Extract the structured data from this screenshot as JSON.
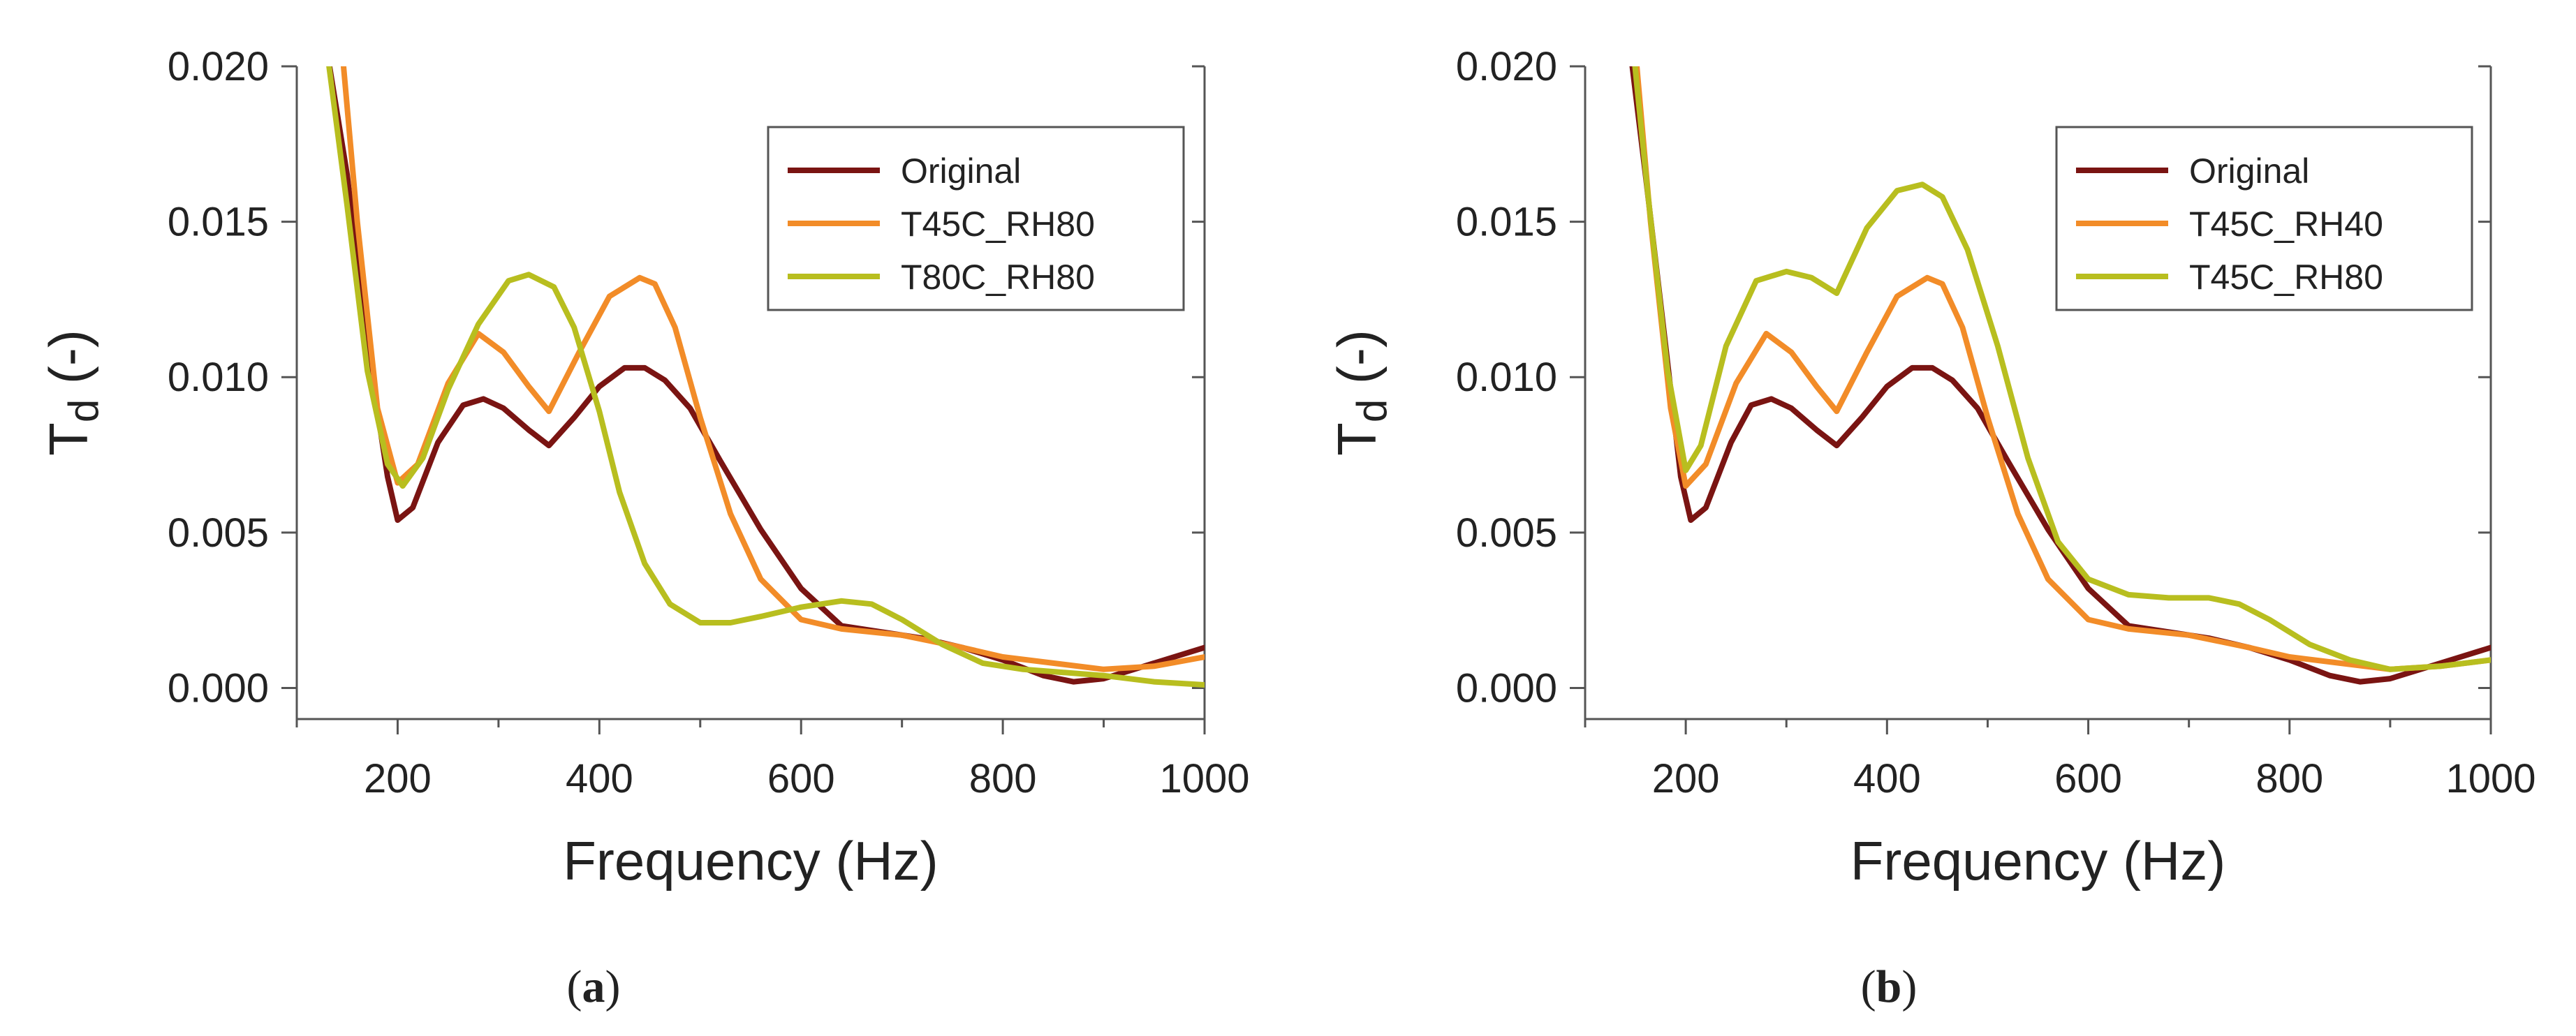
{
  "chart_data": [
    {
      "type": "line",
      "panel_label": "a",
      "xlabel": "Frequency (Hz)",
      "ylabel": "T",
      "ylabel_subscript": "d",
      "ylabel_unit": " (-)",
      "xlim": [
        100,
        1000
      ],
      "ylim": [
        -0.001,
        0.02
      ],
      "xticks": [
        200,
        400,
        600,
        800,
        1000
      ],
      "yticks": [
        0.0,
        0.005,
        0.01,
        0.015,
        0.02
      ],
      "ytick_labels": [
        "0.000",
        "0.005",
        "0.010",
        "0.015",
        "0.020"
      ],
      "legend_position": "top-right",
      "series": [
        {
          "name": "Original",
          "color": "#7a1412",
          "x": [
            130,
            150,
            170,
            190,
            200,
            215,
            240,
            265,
            285,
            305,
            330,
            350,
            375,
            400,
            425,
            445,
            465,
            490,
            520,
            560,
            600,
            640,
            680,
            720,
            760,
            800,
            840,
            870,
            900,
            930,
            960,
            1000
          ],
          "y": [
            0.0205,
            0.0165,
            0.011,
            0.0068,
            0.0054,
            0.0058,
            0.0079,
            0.0091,
            0.0093,
            0.009,
            0.0083,
            0.0078,
            0.0087,
            0.0097,
            0.0103,
            0.0103,
            0.0099,
            0.009,
            0.0073,
            0.0051,
            0.0032,
            0.002,
            0.0018,
            0.0016,
            0.0013,
            0.0009,
            0.0004,
            0.0002,
            0.0003,
            0.0006,
            0.0009,
            0.0013
          ]
        },
        {
          "name": "T45C_RH80",
          "color": "#f28c28",
          "x": [
            145,
            160,
            180,
            200,
            220,
            250,
            280,
            305,
            330,
            350,
            380,
            410,
            440,
            455,
            475,
            500,
            530,
            560,
            600,
            640,
            700,
            760,
            800,
            850,
            900,
            950,
            1000
          ],
          "y": [
            0.0205,
            0.015,
            0.009,
            0.0066,
            0.0072,
            0.0098,
            0.0114,
            0.0108,
            0.0097,
            0.0089,
            0.0108,
            0.0126,
            0.0132,
            0.013,
            0.0116,
            0.0087,
            0.0056,
            0.0035,
            0.0022,
            0.0019,
            0.0017,
            0.0013,
            0.001,
            0.0008,
            0.0006,
            0.0007,
            0.001
          ]
        },
        {
          "name": "T80C_RH80",
          "color": "#b8be1f",
          "x": [
            130,
            150,
            170,
            190,
            205,
            225,
            250,
            280,
            310,
            330,
            355,
            375,
            400,
            420,
            445,
            470,
            500,
            530,
            560,
            600,
            640,
            670,
            700,
            740,
            780,
            820,
            860,
            900,
            950,
            1000
          ],
          "y": [
            0.0205,
            0.0155,
            0.0102,
            0.0072,
            0.0065,
            0.0074,
            0.0096,
            0.0117,
            0.0131,
            0.0133,
            0.0129,
            0.0116,
            0.0089,
            0.0063,
            0.004,
            0.0027,
            0.0021,
            0.0021,
            0.0023,
            0.0026,
            0.0028,
            0.0027,
            0.0022,
            0.0014,
            0.0008,
            0.0006,
            0.0005,
            0.0004,
            0.0002,
            0.0001
          ]
        }
      ]
    },
    {
      "type": "line",
      "panel_label": "b",
      "xlabel": "Frequency (Hz)",
      "ylabel": "T",
      "ylabel_subscript": "d",
      "ylabel_unit": " (-)",
      "xlim": [
        100,
        1000
      ],
      "ylim": [
        -0.001,
        0.02
      ],
      "xticks": [
        200,
        400,
        600,
        800,
        1000
      ],
      "yticks": [
        0.0,
        0.005,
        0.01,
        0.015,
        0.02
      ],
      "ytick_labels": [
        "0.000",
        "0.005",
        "0.010",
        "0.015",
        "0.020"
      ],
      "legend_position": "top-right",
      "series": [
        {
          "name": "Original",
          "color": "#7a1412",
          "x": [
            145,
            160,
            180,
            195,
            205,
            220,
            245,
            265,
            285,
            305,
            330,
            350,
            375,
            400,
            425,
            445,
            465,
            490,
            520,
            560,
            600,
            640,
            680,
            720,
            760,
            800,
            840,
            870,
            900,
            930,
            960,
            1000
          ],
          "y": [
            0.0205,
            0.0165,
            0.011,
            0.0068,
            0.0054,
            0.0058,
            0.0079,
            0.0091,
            0.0093,
            0.009,
            0.0083,
            0.0078,
            0.0087,
            0.0097,
            0.0103,
            0.0103,
            0.0099,
            0.009,
            0.0073,
            0.0051,
            0.0032,
            0.002,
            0.0018,
            0.0016,
            0.0013,
            0.0009,
            0.0004,
            0.0002,
            0.0003,
            0.0006,
            0.0009,
            0.0013
          ]
        },
        {
          "name": "T45C_RH40",
          "color": "#f28c28",
          "x": [
            150,
            165,
            185,
            200,
            220,
            250,
            280,
            305,
            330,
            350,
            380,
            410,
            440,
            455,
            475,
            500,
            530,
            560,
            600,
            640,
            700,
            760,
            800,
            850,
            900,
            950,
            1000
          ],
          "y": [
            0.0205,
            0.015,
            0.009,
            0.0065,
            0.0072,
            0.0098,
            0.0114,
            0.0108,
            0.0097,
            0.0089,
            0.0108,
            0.0126,
            0.0132,
            0.013,
            0.0116,
            0.0087,
            0.0056,
            0.0035,
            0.0022,
            0.0019,
            0.0017,
            0.0013,
            0.001,
            0.0008,
            0.0006,
            0.0007,
            0.0009
          ]
        },
        {
          "name": "T45C_RH80",
          "color": "#b8be1f",
          "x": [
            148,
            162,
            182,
            200,
            215,
            240,
            270,
            300,
            325,
            350,
            380,
            410,
            435,
            455,
            480,
            510,
            540,
            570,
            600,
            640,
            680,
            720,
            750,
            780,
            820,
            860,
            900,
            950,
            1000
          ],
          "y": [
            0.0205,
            0.016,
            0.0102,
            0.007,
            0.0078,
            0.011,
            0.0131,
            0.0134,
            0.0132,
            0.0127,
            0.0148,
            0.016,
            0.0162,
            0.0158,
            0.0141,
            0.011,
            0.0074,
            0.0047,
            0.0035,
            0.003,
            0.0029,
            0.0029,
            0.0027,
            0.0022,
            0.0014,
            0.0009,
            0.0006,
            0.0007,
            0.0009
          ]
        }
      ]
    }
  ]
}
